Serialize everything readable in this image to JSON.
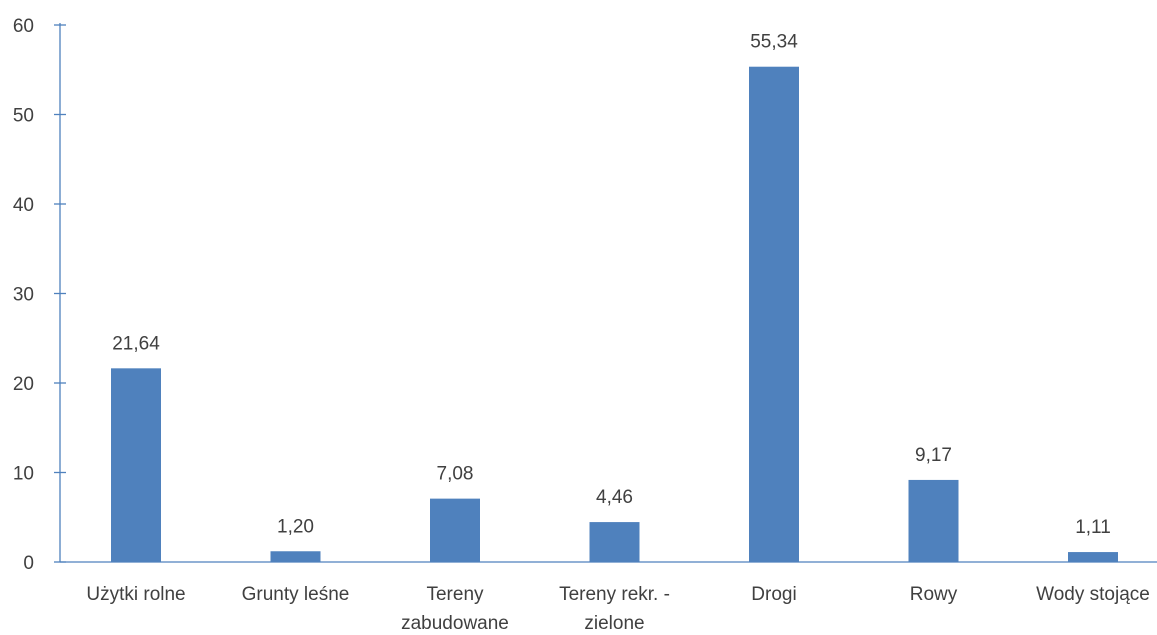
{
  "chart_data": {
    "type": "bar",
    "title": "",
    "xlabel": "",
    "ylabel": "",
    "categories": [
      [
        "Użytki rolne"
      ],
      [
        "Grunty leśne"
      ],
      [
        "Tereny",
        "zabudowane"
      ],
      [
        "Tereny rekr. -",
        "zielone"
      ],
      [
        "Drogi"
      ],
      [
        "Rowy"
      ],
      [
        "Wody stojące"
      ]
    ],
    "values": [
      21.64,
      1.2,
      7.08,
      4.46,
      55.34,
      9.17,
      1.11
    ],
    "value_labels": [
      "21,64",
      "1,20",
      "7,08",
      "4,46",
      "55,34",
      "9,17",
      "1,11"
    ],
    "ylim": [
      0,
      60
    ],
    "yticks": [
      0,
      10,
      20,
      30,
      40,
      50,
      60
    ],
    "grid": false,
    "legend": "none",
    "colors": {
      "bar": "#4f81bd",
      "axis": "#4f81bd",
      "text": "#404040"
    }
  }
}
